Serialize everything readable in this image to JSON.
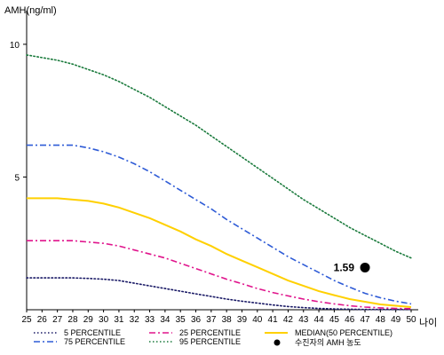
{
  "chart_data": {
    "type": "line",
    "title": "",
    "ylabel": "AMH(ng/ml)",
    "xlabel": "나이",
    "x": [
      25,
      26,
      27,
      28,
      29,
      30,
      31,
      32,
      33,
      34,
      35,
      36,
      37,
      38,
      39,
      40,
      41,
      42,
      43,
      44,
      45,
      46,
      47,
      48,
      49,
      50
    ],
    "x_tick_labels": [
      "25",
      "26",
      "27",
      "28",
      "29",
      "30",
      "31",
      "32",
      "33",
      "34",
      "35",
      "36",
      "37",
      "38",
      "39",
      "40",
      "41",
      "42",
      "43",
      "44",
      "45",
      "46",
      "47",
      "48",
      "49",
      "50"
    ],
    "xlim": [
      25,
      50
    ],
    "ylim": [
      0,
      11
    ],
    "y_ticks": [
      5,
      10
    ],
    "y_tick_labels": [
      "5",
      "10"
    ],
    "grid": false,
    "series": [
      {
        "name": "5 PERCENTILE",
        "color": "#1a1a66",
        "style": "dotted",
        "values": [
          1.2,
          1.2,
          1.2,
          1.2,
          1.18,
          1.15,
          1.1,
          1.0,
          0.9,
          0.8,
          0.7,
          0.6,
          0.5,
          0.4,
          0.32,
          0.25,
          0.18,
          0.12,
          0.08,
          0.05,
          0.03,
          0.02,
          0.01,
          0.01,
          0.01,
          0.01
        ]
      },
      {
        "name": "25 PERCENTILE",
        "color": "#e0148c",
        "style": "dashdot",
        "values": [
          2.6,
          2.6,
          2.6,
          2.6,
          2.55,
          2.5,
          2.4,
          2.25,
          2.1,
          1.95,
          1.75,
          1.55,
          1.35,
          1.15,
          0.98,
          0.8,
          0.65,
          0.52,
          0.4,
          0.3,
          0.22,
          0.15,
          0.1,
          0.07,
          0.05,
          0.04
        ]
      },
      {
        "name": "MEDIAN(50 PERCENTILE)",
        "color": "#ffd000",
        "style": "solid",
        "values": [
          4.2,
          4.2,
          4.2,
          4.15,
          4.1,
          4.0,
          3.85,
          3.65,
          3.45,
          3.2,
          2.95,
          2.65,
          2.4,
          2.1,
          1.85,
          1.6,
          1.35,
          1.1,
          0.9,
          0.7,
          0.55,
          0.4,
          0.3,
          0.2,
          0.15,
          0.1
        ]
      },
      {
        "name": "75 PERCENTILE",
        "color": "#2e5bd6",
        "style": "dashdot",
        "values": [
          6.2,
          6.2,
          6.2,
          6.2,
          6.1,
          5.95,
          5.75,
          5.5,
          5.2,
          4.85,
          4.5,
          4.15,
          3.8,
          3.4,
          3.05,
          2.7,
          2.35,
          2.0,
          1.7,
          1.4,
          1.1,
          0.85,
          0.62,
          0.45,
          0.32,
          0.22
        ]
      },
      {
        "name": "95 PERCENTILE",
        "color": "#1a7a3c",
        "style": "dotted",
        "values": [
          9.6,
          9.5,
          9.4,
          9.25,
          9.05,
          8.85,
          8.6,
          8.3,
          8.0,
          7.65,
          7.3,
          6.95,
          6.55,
          6.15,
          5.75,
          5.35,
          4.95,
          4.55,
          4.15,
          3.8,
          3.45,
          3.1,
          2.8,
          2.5,
          2.2,
          1.95
        ]
      }
    ],
    "points": [
      {
        "name": "수진자의 AMH 농도",
        "x": 47,
        "y": 1.59,
        "label": "1.59",
        "color": "#000000"
      }
    ],
    "legend_position": "bottom"
  }
}
